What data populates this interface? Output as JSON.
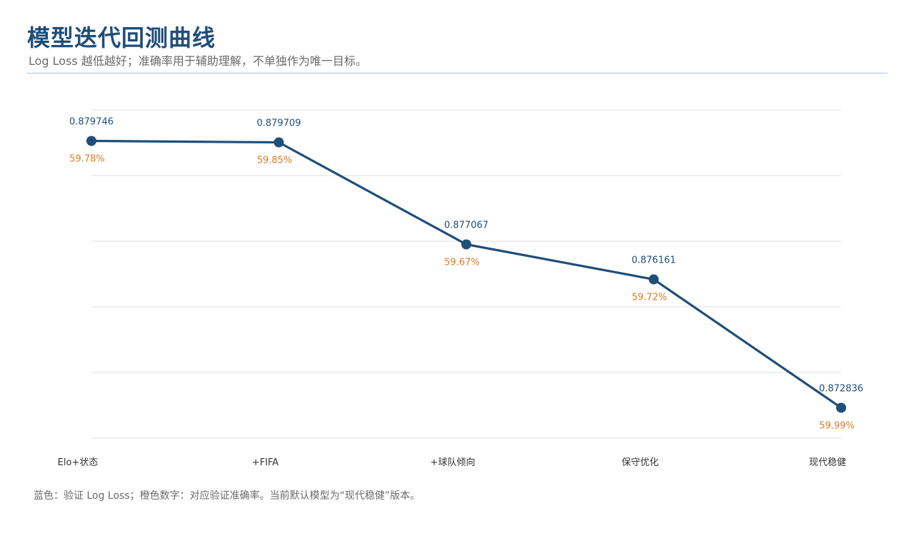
{
  "header": {
    "title": "模型迭代回测曲线",
    "subtitle": "Log Loss 越低越好；准确率用于辅助理解，不单独作为唯一目标。"
  },
  "footnote": "蓝色：验证 Log Loss；橙色数字：对应验证准确率。当前默认模型为“现代稳健”版本。",
  "colors": {
    "line": "#1f4e79",
    "accuracy": "#e07b20",
    "grid": "#e2e2e2"
  },
  "chart_data": {
    "type": "line",
    "title": "",
    "xlabel": "",
    "ylabel": "",
    "categories": [
      "Elo+状态",
      "+FIFA",
      "+球队倾向",
      "保守优化",
      "现代稳健"
    ],
    "series": [
      {
        "values": [
          0.879746,
          0.879709,
          0.877067,
          0.876161,
          0.872836
        ],
        "labels": [
          "0.879746",
          "0.879709",
          "0.877067",
          "0.876161",
          "0.872836"
        ]
      }
    ],
    "accuracy_labels": [
      "59.78%",
      "59.85%",
      "59.67%",
      "59.72%",
      "59.99%"
    ],
    "ylim": [
      0.87205,
      0.88055
    ],
    "grid": true,
    "legend": "none"
  }
}
